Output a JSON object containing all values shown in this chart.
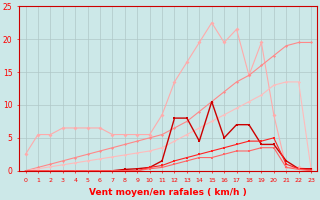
{
  "x": [
    0,
    1,
    2,
    3,
    4,
    5,
    6,
    7,
    8,
    9,
    10,
    11,
    12,
    13,
    14,
    15,
    16,
    17,
    18,
    19,
    20,
    21,
    22,
    23
  ],
  "line_pink_light": [
    2.5,
    5.5,
    5.5,
    6.5,
    6.5,
    6.5,
    6.5,
    5.5,
    5.5,
    5.5,
    5.5,
    8.5,
    13.5,
    16.5,
    19.5,
    22.5,
    19.5,
    21.5,
    14.5,
    19.5,
    8.5,
    0.5,
    0.5,
    0.2
  ],
  "line_linear1": [
    0,
    0.5,
    1.0,
    1.5,
    2.0,
    2.5,
    3.0,
    3.5,
    4.0,
    4.5,
    5.0,
    5.5,
    6.5,
    7.5,
    9.0,
    10.5,
    12.0,
    13.5,
    14.5,
    16.0,
    17.5,
    19.0,
    19.5,
    19.5
  ],
  "line_linear2": [
    0,
    0.3,
    0.6,
    0.9,
    1.2,
    1.5,
    1.8,
    2.1,
    2.4,
    2.7,
    3.0,
    3.5,
    4.5,
    5.5,
    6.5,
    7.5,
    8.5,
    9.5,
    10.5,
    11.5,
    13.0,
    13.5,
    13.5,
    0.3
  ],
  "line_spiky_dark": [
    0,
    0,
    0,
    0,
    0,
    0,
    0,
    0,
    0.2,
    0.3,
    0.5,
    1.5,
    8.0,
    8.0,
    4.5,
    10.5,
    5.0,
    7.0,
    7.0,
    4.0,
    4.0,
    1.5,
    0.3,
    0.3
  ],
  "line_medium_red": [
    0,
    0,
    0,
    0,
    0,
    0,
    0,
    0,
    0,
    0,
    0.5,
    0.8,
    1.5,
    2.0,
    2.5,
    3.0,
    3.5,
    4.0,
    4.5,
    4.5,
    5.0,
    1.0,
    0.3,
    0.1
  ],
  "line_flat_bottom": [
    0,
    0,
    0,
    0,
    0,
    0,
    0,
    0,
    0,
    0,
    0.3,
    0.5,
    1.0,
    1.5,
    2.0,
    2.0,
    2.5,
    3.0,
    3.0,
    3.5,
    3.5,
    0.5,
    0.2,
    0.0
  ],
  "bg_color": "#cce8e8",
  "grid_color": "#b0c8c8",
  "xlabel": "Vent moyen/en rafales ( km/h )",
  "ylim": [
    0,
    25
  ],
  "xlim": [
    0,
    23
  ],
  "yticks": [
    0,
    5,
    10,
    15,
    20,
    25
  ],
  "xticks": [
    0,
    1,
    2,
    3,
    4,
    5,
    6,
    7,
    8,
    9,
    10,
    11,
    12,
    13,
    14,
    15,
    16,
    17,
    18,
    19,
    20,
    21,
    22,
    23
  ]
}
